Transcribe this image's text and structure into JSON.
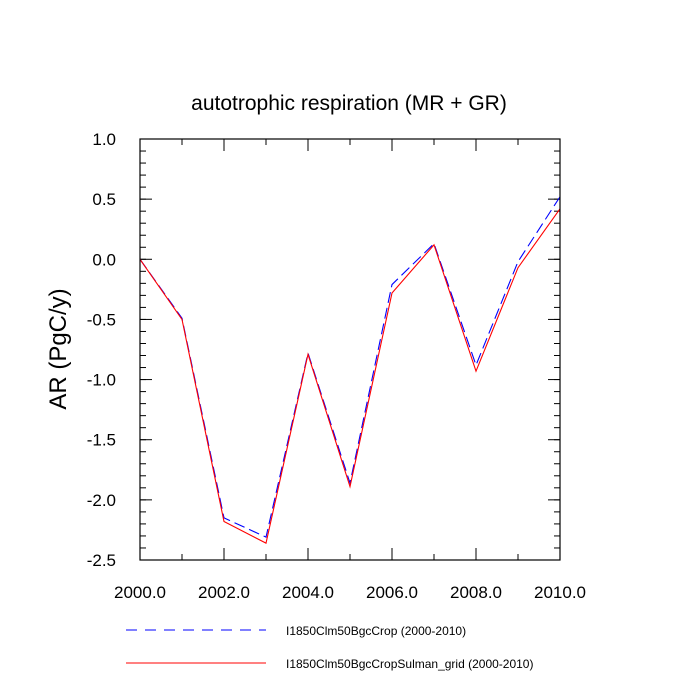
{
  "chart_data": {
    "type": "line",
    "title": "autotrophic respiration (MR + GR)",
    "xlabel": "",
    "ylabel": "AR  (PgC/y)",
    "xlim": [
      2000,
      2010
    ],
    "ylim": [
      -2.5,
      1.0
    ],
    "x_ticks": [
      2000,
      2002,
      2004,
      2006,
      2008,
      2010
    ],
    "x_tick_labels": [
      "2000.0",
      "2002.0",
      "2004.0",
      "2006.0",
      "2008.0",
      "2010.0"
    ],
    "y_ticks": [
      1.0,
      0.5,
      0.0,
      -0.5,
      -1.0,
      -1.5,
      -2.0,
      -2.5
    ],
    "y_tick_labels": [
      "1.0",
      "0.5",
      "0.0",
      "-0.5",
      "-1.0",
      "-1.5",
      "-2.0",
      "-2.5"
    ],
    "grid": false,
    "legend_position": "bottom",
    "x": [
      2000,
      2001,
      2002,
      2003,
      2004,
      2005,
      2006,
      2007,
      2008,
      2009,
      2010
    ],
    "series": [
      {
        "name": "I1850Clm50BgcCrop (2000-2010)",
        "color": "#0000ff",
        "style": "dashed",
        "values": [
          0.0,
          -0.49,
          -2.15,
          -2.31,
          -0.78,
          -1.86,
          -0.21,
          0.13,
          -0.88,
          -0.02,
          0.52
        ]
      },
      {
        "name": "I1850Clm50BgcCropSulman_grid (2000-2010)",
        "color": "#ff0000",
        "style": "solid",
        "values": [
          0.0,
          -0.5,
          -2.18,
          -2.36,
          -0.79,
          -1.89,
          -0.28,
          0.12,
          -0.93,
          -0.07,
          0.42
        ]
      }
    ]
  }
}
